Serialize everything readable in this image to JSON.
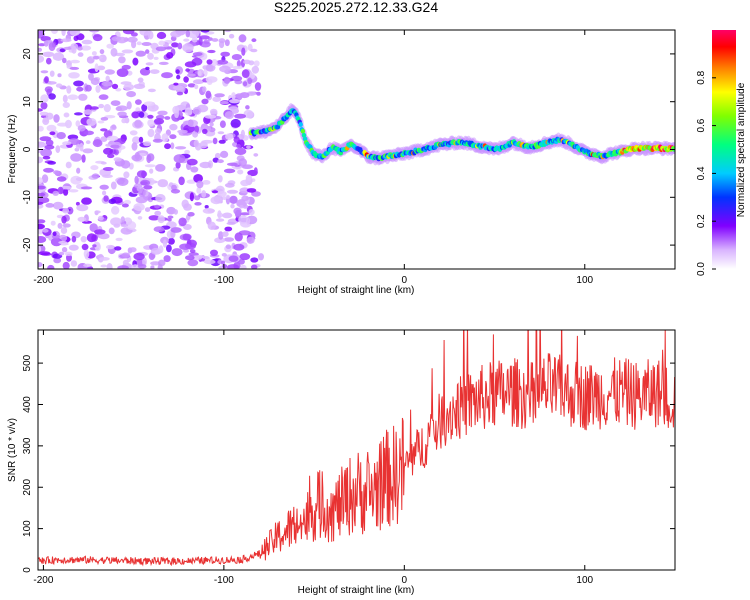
{
  "figure": {
    "title": "S225.2025.272.12.33.G24"
  },
  "chart_data": [
    {
      "type": "heatmap",
      "name": "spectrogram",
      "xlabel": "Height of straight line (km)",
      "ylabel": "Frequency (Hz)",
      "xlim": [
        -203,
        150
      ],
      "ylim": [
        -25,
        25
      ],
      "xticks": [
        -200,
        -100,
        0,
        100
      ],
      "yticks": [
        -20,
        -10,
        0,
        10,
        20
      ],
      "grid": false,
      "ridge": {
        "description_free_trace_x": [
          -85,
          -80,
          -75,
          -70,
          -65,
          -62,
          -58,
          -55,
          -50,
          -45,
          -40,
          -35,
          -30,
          -25,
          -20,
          -15,
          -10,
          -5,
          0,
          5,
          10,
          15,
          20,
          25,
          30,
          35,
          40,
          45,
          50,
          55,
          60,
          65,
          70,
          75,
          80,
          85,
          90,
          95,
          100,
          105,
          110,
          115,
          120,
          125,
          130,
          135,
          140,
          145,
          150
        ],
        "description_free_trace_y": [
          3.5,
          3.5,
          4.0,
          5.0,
          7.0,
          8.5,
          6.0,
          2.0,
          -1.0,
          -1.5,
          0.5,
          -0.5,
          1.0,
          0.0,
          -1.5,
          -1.8,
          -1.5,
          -1.2,
          -0.8,
          -0.5,
          0.0,
          0.5,
          1.0,
          1.2,
          1.5,
          1.3,
          0.8,
          0.5,
          0.0,
          0.5,
          1.5,
          0.8,
          0.5,
          1.0,
          1.5,
          2.0,
          1.5,
          0.5,
          -0.5,
          -1.0,
          -1.5,
          -0.8,
          -0.5,
          0.0,
          0.3,
          0.2,
          0.3,
          0.2,
          0.2
        ]
      },
      "colorbar": {
        "label": "Normalized spectral amplitude",
        "range": [
          0,
          1
        ],
        "ticks": [
          "0.0",
          "0.2",
          "0.4",
          "0.6",
          "0.8"
        ]
      }
    },
    {
      "type": "line",
      "name": "snr",
      "xlabel": "Height of straight line (km)",
      "ylabel": "SNR (10 * v/v)",
      "xlim": [
        -203,
        150
      ],
      "ylim": [
        0,
        580
      ],
      "xticks": [
        -200,
        -100,
        0,
        100
      ],
      "yticks": [
        0,
        100,
        200,
        300,
        400,
        500
      ],
      "grid": false,
      "color": "#e83232",
      "series": [
        {
          "name": "SNR",
          "x": [
            -203,
            -190,
            -170,
            -150,
            -130,
            -110,
            -90,
            -80,
            -75,
            -70,
            -65,
            -60,
            -55,
            -50,
            -45,
            -40,
            -35,
            -30,
            -25,
            -20,
            -15,
            -10,
            -5,
            0,
            5,
            10,
            15,
            20,
            25,
            30,
            35,
            40,
            50,
            60,
            70,
            80,
            90,
            100,
            110,
            120,
            130,
            140,
            150
          ],
          "values": [
            22,
            25,
            24,
            22,
            21,
            23,
            25,
            40,
            60,
            80,
            95,
            110,
            120,
            150,
            160,
            140,
            160,
            180,
            190,
            180,
            200,
            220,
            230,
            250,
            275,
            300,
            330,
            360,
            380,
            390,
            400,
            410,
            425,
            430,
            420,
            440,
            430,
            420,
            425,
            430,
            420,
            430,
            410
          ]
        }
      ]
    }
  ]
}
